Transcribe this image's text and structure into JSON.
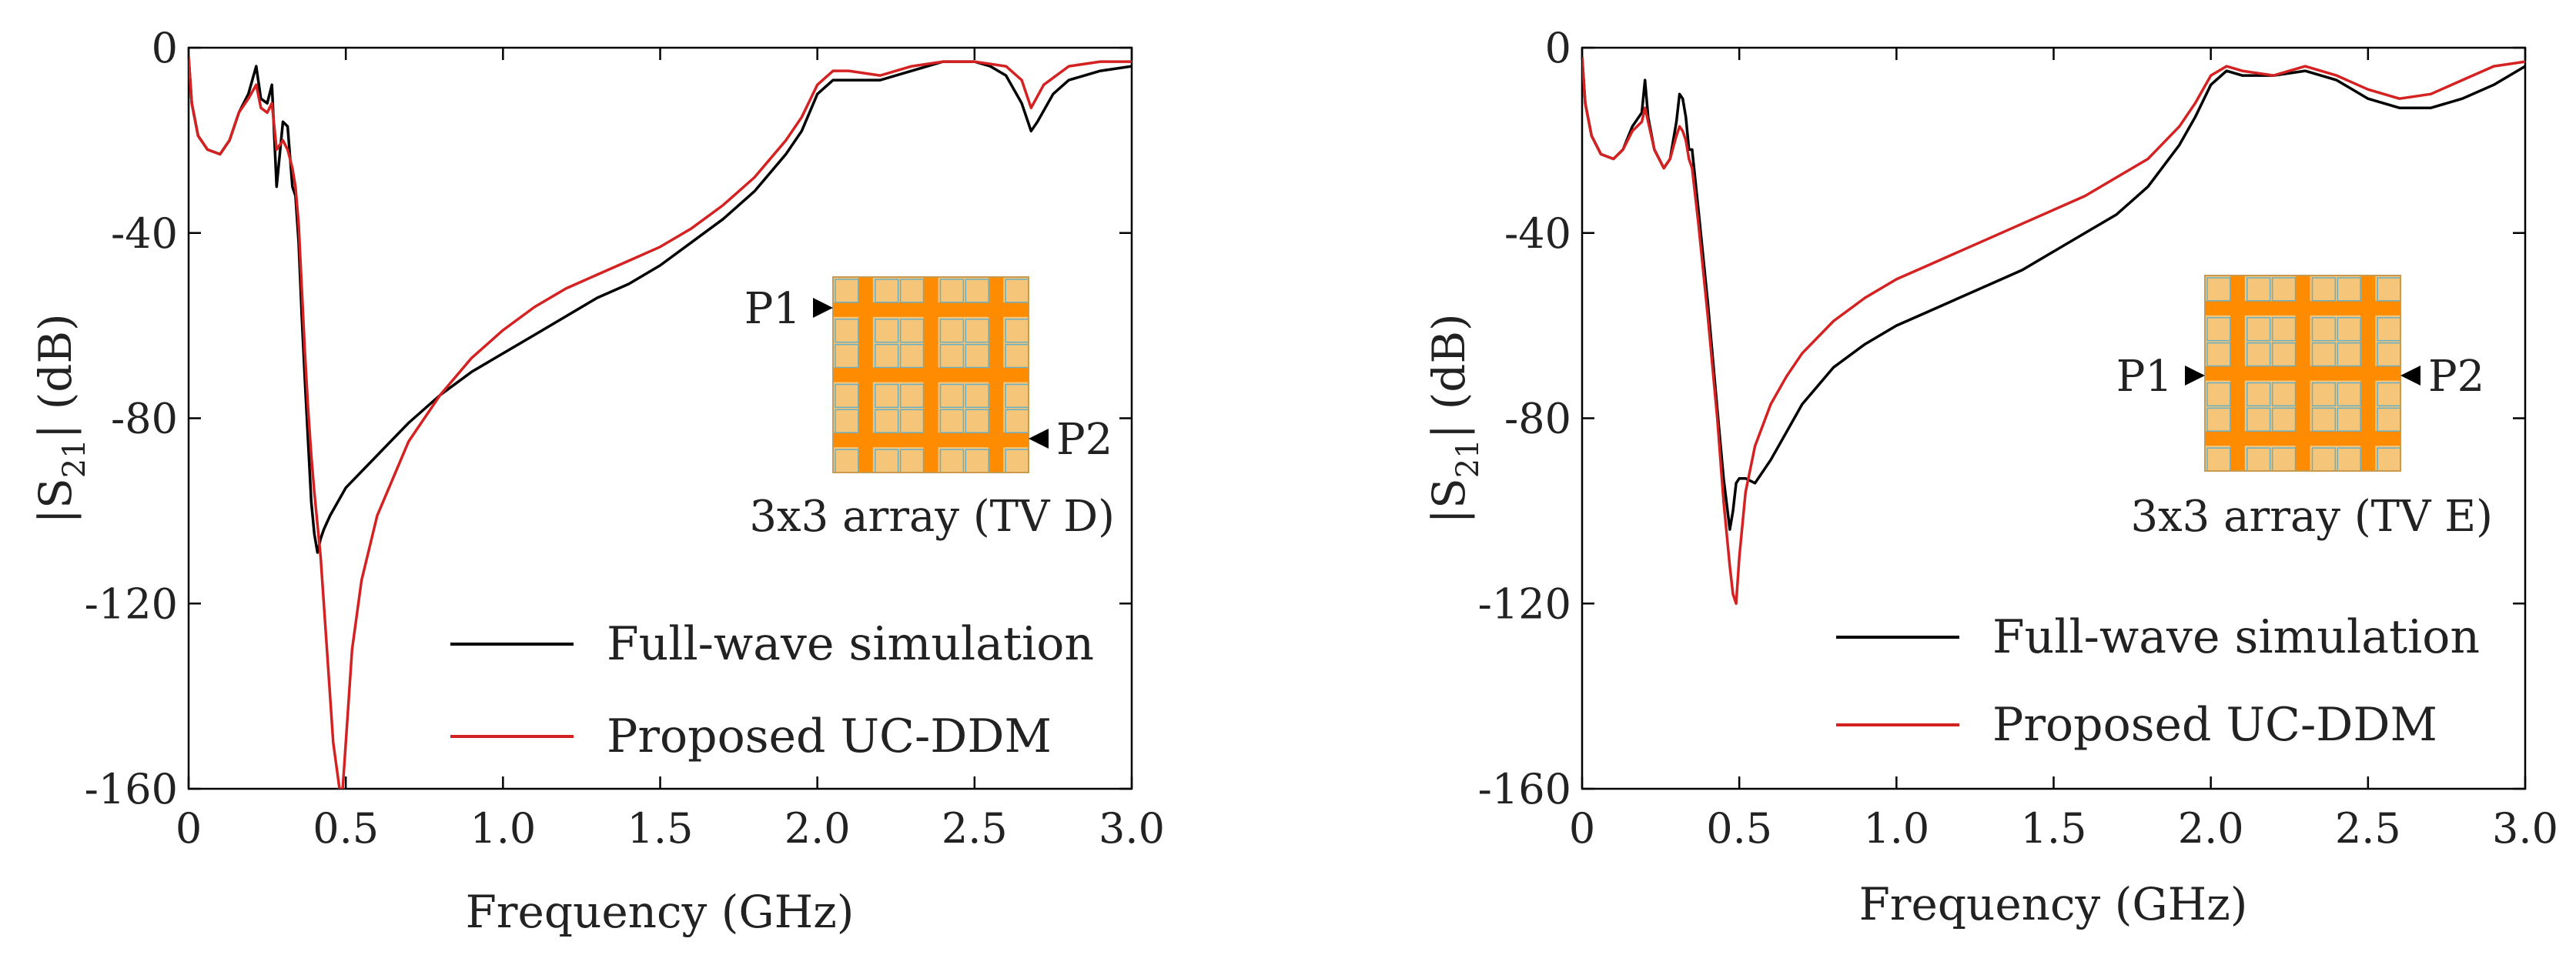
{
  "chart_data": [
    {
      "type": "line",
      "title": "",
      "xlabel": "Frequency (GHz)",
      "ylabel": {
        "pre": "|S",
        "sub": "21",
        "post": "| (dB)"
      },
      "xlim": [
        0,
        3.0
      ],
      "ylim": [
        -160,
        0
      ],
      "xticks": [
        0,
        0.5,
        1.0,
        1.5,
        2.0,
        2.5,
        3.0
      ],
      "xtick_labels": [
        "0",
        "0.5",
        "1.0",
        "1.5",
        "2.0",
        "2.5",
        "3.0"
      ],
      "yticks": [
        0,
        -40,
        -80,
        -120,
        -160
      ],
      "ytick_labels": [
        "0",
        "-40",
        "-80",
        "-120",
        "-160"
      ],
      "grid": false,
      "legend_position": "bottom-right",
      "series": [
        {
          "name": "Full-wave simulation",
          "color": "#000000",
          "x": [
            0,
            0.01,
            0.03,
            0.06,
            0.1,
            0.13,
            0.16,
            0.19,
            0.215,
            0.23,
            0.25,
            0.265,
            0.28,
            0.3,
            0.315,
            0.33,
            0.34,
            0.35,
            0.36,
            0.37,
            0.38,
            0.39,
            0.4,
            0.41,
            0.42,
            0.43,
            0.45,
            0.5,
            0.6,
            0.7,
            0.8,
            0.9,
            1.0,
            1.1,
            1.2,
            1.3,
            1.4,
            1.5,
            1.6,
            1.7,
            1.8,
            1.9,
            1.95,
            2.0,
            2.05,
            2.1,
            2.2,
            2.3,
            2.4,
            2.45,
            2.5,
            2.55,
            2.6,
            2.65,
            2.68,
            2.7,
            2.75,
            2.8,
            2.9,
            3.0
          ],
          "y": [
            -2,
            -12,
            -19,
            -22,
            -23,
            -20,
            -14,
            -10,
            -4,
            -11,
            -12,
            -8,
            -30,
            -16,
            -17,
            -30,
            -32,
            -42,
            -58,
            -72,
            -85,
            -98,
            -105,
            -109,
            -106,
            -104,
            -101,
            -95,
            -88,
            -81,
            -75,
            -70,
            -66,
            -62,
            -58,
            -54,
            -51,
            -47,
            -42,
            -37,
            -31,
            -23,
            -18,
            -10,
            -7,
            -7,
            -7,
            -5,
            -3,
            -3,
            -3,
            -4,
            -6,
            -12,
            -18,
            -16,
            -10,
            -7,
            -5,
            -4
          ]
        },
        {
          "name": "Proposed UC-DDM",
          "color": "#d42222",
          "x": [
            0,
            0.01,
            0.03,
            0.06,
            0.1,
            0.13,
            0.16,
            0.19,
            0.215,
            0.23,
            0.25,
            0.265,
            0.28,
            0.3,
            0.315,
            0.33,
            0.34,
            0.35,
            0.36,
            0.37,
            0.38,
            0.39,
            0.4,
            0.42,
            0.44,
            0.46,
            0.48,
            0.49,
            0.5,
            0.52,
            0.55,
            0.6,
            0.7,
            0.8,
            0.9,
            1.0,
            1.1,
            1.2,
            1.3,
            1.4,
            1.5,
            1.6,
            1.7,
            1.8,
            1.9,
            1.95,
            2.0,
            2.05,
            2.1,
            2.2,
            2.3,
            2.4,
            2.5,
            2.6,
            2.65,
            2.68,
            2.72,
            2.8,
            2.9,
            3.0
          ],
          "y": [
            -2,
            -12,
            -19,
            -22,
            -23,
            -20,
            -14,
            -11,
            -8,
            -13,
            -14,
            -12,
            -22,
            -20,
            -22,
            -26,
            -30,
            -38,
            -52,
            -66,
            -78,
            -88,
            -96,
            -110,
            -130,
            -150,
            -160,
            -160,
            -150,
            -130,
            -115,
            -101,
            -85,
            -75,
            -67,
            -61,
            -56,
            -52,
            -49,
            -46,
            -43,
            -39,
            -34,
            -28,
            -20,
            -15,
            -8,
            -5,
            -5,
            -6,
            -4,
            -3,
            -3,
            -4,
            -7,
            -13,
            -8,
            -4,
            -3,
            -3
          ]
        }
      ],
      "inset": {
        "label": "3x3 array (TV D)",
        "port1": "P1",
        "port2": "P2",
        "port_layout": "diagonal",
        "frame_color": "#f5c57a",
        "grid_color": "#ff8c00",
        "gap_color": "#6aaec2"
      }
    },
    {
      "type": "line",
      "title": "",
      "xlabel": "Frequency (GHz)",
      "ylabel": {
        "pre": "|S",
        "sub": "21",
        "post": "| (dB)"
      },
      "xlim": [
        0,
        3.0
      ],
      "ylim": [
        -160,
        0
      ],
      "xticks": [
        0,
        0.5,
        1.0,
        1.5,
        2.0,
        2.5,
        3.0
      ],
      "xtick_labels": [
        "0",
        "0.5",
        "1.0",
        "1.5",
        "2.0",
        "2.5",
        "3.0"
      ],
      "yticks": [
        0,
        -40,
        -80,
        -120,
        -160
      ],
      "ytick_labels": [
        "0",
        "-40",
        "-80",
        "-120",
        "-160"
      ],
      "grid": false,
      "legend_position": "bottom-right",
      "series": [
        {
          "name": "Full-wave simulation",
          "color": "#000000",
          "x": [
            0,
            0.01,
            0.03,
            0.06,
            0.1,
            0.13,
            0.16,
            0.19,
            0.2,
            0.21,
            0.23,
            0.26,
            0.28,
            0.3,
            0.31,
            0.32,
            0.33,
            0.34,
            0.35,
            0.37,
            0.4,
            0.43,
            0.45,
            0.47,
            0.48,
            0.49,
            0.5,
            0.52,
            0.55,
            0.6,
            0.65,
            0.7,
            0.8,
            0.9,
            1.0,
            1.1,
            1.2,
            1.3,
            1.4,
            1.5,
            1.6,
            1.7,
            1.8,
            1.9,
            1.95,
            2.0,
            2.05,
            2.1,
            2.2,
            2.3,
            2.4,
            2.5,
            2.6,
            2.7,
            2.8,
            2.9,
            3.0
          ],
          "y": [
            -2,
            -12,
            -19,
            -23,
            -24,
            -22,
            -17,
            -14,
            -7,
            -15,
            -22,
            -26,
            -24,
            -16,
            -10,
            -11,
            -15,
            -22,
            -22,
            -35,
            -55,
            -78,
            -93,
            -104,
            -100,
            -94,
            -93,
            -93,
            -94,
            -89,
            -83,
            -77,
            -69,
            -64,
            -60,
            -57,
            -54,
            -51,
            -48,
            -44,
            -40,
            -36,
            -30,
            -21,
            -15,
            -8,
            -5,
            -6,
            -6,
            -5,
            -7,
            -11,
            -13,
            -13,
            -11,
            -8,
            -4
          ]
        },
        {
          "name": "Proposed UC-DDM",
          "color": "#d42222",
          "x": [
            0,
            0.01,
            0.03,
            0.06,
            0.1,
            0.13,
            0.16,
            0.19,
            0.2,
            0.21,
            0.23,
            0.26,
            0.28,
            0.3,
            0.31,
            0.32,
            0.33,
            0.34,
            0.35,
            0.37,
            0.4,
            0.43,
            0.45,
            0.47,
            0.48,
            0.49,
            0.5,
            0.52,
            0.55,
            0.6,
            0.65,
            0.7,
            0.8,
            0.9,
            1.0,
            1.1,
            1.2,
            1.3,
            1.4,
            1.5,
            1.6,
            1.7,
            1.8,
            1.9,
            1.95,
            2.0,
            2.05,
            2.1,
            2.2,
            2.3,
            2.4,
            2.5,
            2.6,
            2.7,
            2.8,
            2.9,
            3.0
          ],
          "y": [
            -2,
            -12,
            -19,
            -23,
            -24,
            -22,
            -18,
            -16,
            -13,
            -16,
            -22,
            -26,
            -24,
            -19,
            -17,
            -18,
            -20,
            -24,
            -26,
            -38,
            -58,
            -80,
            -98,
            -112,
            -118,
            -120,
            -110,
            -96,
            -86,
            -77,
            -71,
            -66,
            -59,
            -54,
            -50,
            -47,
            -44,
            -41,
            -38,
            -35,
            -32,
            -28,
            -24,
            -17,
            -12,
            -6,
            -4,
            -5,
            -6,
            -4,
            -6,
            -9,
            -11,
            -10,
            -7,
            -4,
            -3
          ]
        }
      ],
      "inset": {
        "label": "3x3 array (TV E)",
        "port1": "P1",
        "port2": "P2",
        "port_layout": "horizontal",
        "frame_color": "#f5c57a",
        "grid_color": "#ff8c00",
        "gap_color": "#6aaec2"
      }
    }
  ]
}
